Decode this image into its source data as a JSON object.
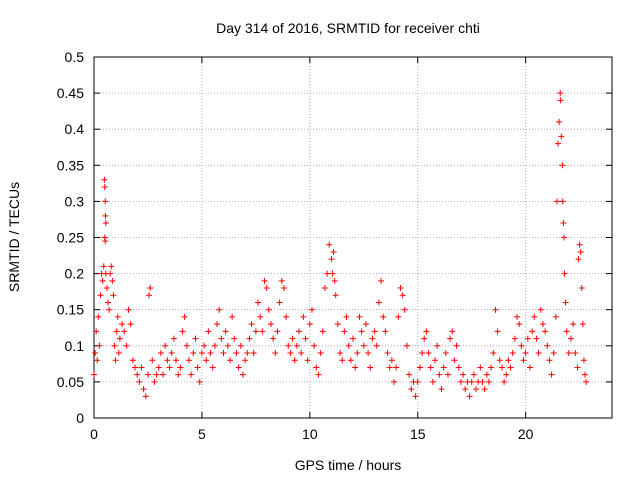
{
  "chart_data": {
    "type": "scatter",
    "title": "Day 314 of 2016, SRMTID for receiver chti",
    "xlabel": "GPS time / hours",
    "ylabel": "SRMTID / TECUs",
    "xlim": [
      0,
      24
    ],
    "ylim": [
      0,
      0.5
    ],
    "x_ticks": [
      0,
      5,
      10,
      15,
      20
    ],
    "x_tick_labels": [
      "0",
      "5",
      "10",
      "15",
      "20"
    ],
    "y_ticks": [
      0,
      0.05,
      0.1,
      0.15,
      0.2,
      0.25,
      0.3,
      0.35,
      0.4,
      0.45,
      0.5
    ],
    "y_tick_labels": [
      "0",
      "0.05",
      "0.1",
      "0.15",
      "0.2",
      "0.25",
      "0.3",
      "0.35",
      "0.4",
      "0.45",
      "0.5"
    ],
    "grid": true,
    "marker": "+",
    "series": [
      {
        "name": "SRMTID",
        "color": "#ff0000",
        "points": [
          [
            0.0,
            0.06
          ],
          [
            0.05,
            0.09
          ],
          [
            0.1,
            0.12
          ],
          [
            0.15,
            0.08
          ],
          [
            0.2,
            0.14
          ],
          [
            0.25,
            0.1
          ],
          [
            0.3,
            0.17
          ],
          [
            0.35,
            0.2
          ],
          [
            0.4,
            0.19
          ],
          [
            0.45,
            0.21
          ],
          [
            0.48,
            0.33
          ],
          [
            0.5,
            0.32
          ],
          [
            0.52,
            0.3
          ],
          [
            0.53,
            0.28
          ],
          [
            0.55,
            0.27
          ],
          [
            0.5,
            0.25
          ],
          [
            0.52,
            0.245
          ],
          [
            0.55,
            0.2
          ],
          [
            0.6,
            0.18
          ],
          [
            0.65,
            0.16
          ],
          [
            0.7,
            0.15
          ],
          [
            0.75,
            0.2
          ],
          [
            0.8,
            0.21
          ],
          [
            0.85,
            0.19
          ],
          [
            0.9,
            0.17
          ],
          [
            0.95,
            0.1
          ],
          [
            1.0,
            0.08
          ],
          [
            1.05,
            0.12
          ],
          [
            1.1,
            0.14
          ],
          [
            1.15,
            0.09
          ],
          [
            1.2,
            0.11
          ],
          [
            1.3,
            0.13
          ],
          [
            1.4,
            0.12
          ],
          [
            1.5,
            0.1
          ],
          [
            1.6,
            0.15
          ],
          [
            1.7,
            0.13
          ],
          [
            1.8,
            0.08
          ],
          [
            1.9,
            0.07
          ],
          [
            2.0,
            0.06
          ],
          [
            2.1,
            0.05
          ],
          [
            2.2,
            0.07
          ],
          [
            2.3,
            0.04
          ],
          [
            2.4,
            0.03
          ],
          [
            2.5,
            0.06
          ],
          [
            2.55,
            0.17
          ],
          [
            2.6,
            0.18
          ],
          [
            2.7,
            0.08
          ],
          [
            2.8,
            0.05
          ],
          [
            2.9,
            0.06
          ],
          [
            3.0,
            0.07
          ],
          [
            3.1,
            0.09
          ],
          [
            3.2,
            0.06
          ],
          [
            3.3,
            0.1
          ],
          [
            3.4,
            0.08
          ],
          [
            3.5,
            0.07
          ],
          [
            3.6,
            0.09
          ],
          [
            3.7,
            0.11
          ],
          [
            3.8,
            0.08
          ],
          [
            3.9,
            0.06
          ],
          [
            4.0,
            0.07
          ],
          [
            4.1,
            0.12
          ],
          [
            4.2,
            0.14
          ],
          [
            4.3,
            0.1
          ],
          [
            4.4,
            0.08
          ],
          [
            4.5,
            0.06
          ],
          [
            4.6,
            0.09
          ],
          [
            4.7,
            0.11
          ],
          [
            4.8,
            0.07
          ],
          [
            4.9,
            0.05
          ],
          [
            5.0,
            0.09
          ],
          [
            5.1,
            0.1
          ],
          [
            5.2,
            0.08
          ],
          [
            5.3,
            0.12
          ],
          [
            5.4,
            0.09
          ],
          [
            5.5,
            0.07
          ],
          [
            5.6,
            0.1
          ],
          [
            5.7,
            0.13
          ],
          [
            5.8,
            0.15
          ],
          [
            5.9,
            0.11
          ],
          [
            6.0,
            0.09
          ],
          [
            6.1,
            0.12
          ],
          [
            6.2,
            0.1
          ],
          [
            6.3,
            0.08
          ],
          [
            6.4,
            0.14
          ],
          [
            6.5,
            0.11
          ],
          [
            6.6,
            0.09
          ],
          [
            6.7,
            0.07
          ],
          [
            6.8,
            0.1
          ],
          [
            6.9,
            0.06
          ],
          [
            7.0,
            0.08
          ],
          [
            7.1,
            0.09
          ],
          [
            7.2,
            0.11
          ],
          [
            7.3,
            0.13
          ],
          [
            7.4,
            0.09
          ],
          [
            7.5,
            0.12
          ],
          [
            7.6,
            0.16
          ],
          [
            7.7,
            0.14
          ],
          [
            7.8,
            0.12
          ],
          [
            7.9,
            0.19
          ],
          [
            8.0,
            0.18
          ],
          [
            8.1,
            0.15
          ],
          [
            8.2,
            0.13
          ],
          [
            8.3,
            0.11
          ],
          [
            8.4,
            0.09
          ],
          [
            8.5,
            0.12
          ],
          [
            8.6,
            0.16
          ],
          [
            8.7,
            0.19
          ],
          [
            8.8,
            0.18
          ],
          [
            8.9,
            0.14
          ],
          [
            9.0,
            0.1
          ],
          [
            9.1,
            0.09
          ],
          [
            9.2,
            0.11
          ],
          [
            9.3,
            0.08
          ],
          [
            9.4,
            0.1
          ],
          [
            9.5,
            0.12
          ],
          [
            9.6,
            0.09
          ],
          [
            9.7,
            0.14
          ],
          [
            9.8,
            0.11
          ],
          [
            9.9,
            0.08
          ],
          [
            10.0,
            0.13
          ],
          [
            10.1,
            0.15
          ],
          [
            10.2,
            0.1
          ],
          [
            10.3,
            0.07
          ],
          [
            10.4,
            0.06
          ],
          [
            10.5,
            0.09
          ],
          [
            10.6,
            0.12
          ],
          [
            10.7,
            0.18
          ],
          [
            10.8,
            0.2
          ],
          [
            10.9,
            0.24
          ],
          [
            11.0,
            0.22
          ],
          [
            11.05,
            0.2
          ],
          [
            11.1,
            0.23
          ],
          [
            11.15,
            0.19
          ],
          [
            11.2,
            0.17
          ],
          [
            11.3,
            0.13
          ],
          [
            11.4,
            0.09
          ],
          [
            11.5,
            0.08
          ],
          [
            11.6,
            0.12
          ],
          [
            11.7,
            0.14
          ],
          [
            11.8,
            0.1
          ],
          [
            11.9,
            0.08
          ],
          [
            12.0,
            0.11
          ],
          [
            12.1,
            0.07
          ],
          [
            12.2,
            0.09
          ],
          [
            12.3,
            0.14
          ],
          [
            12.4,
            0.12
          ],
          [
            12.5,
            0.1
          ],
          [
            12.6,
            0.13
          ],
          [
            12.7,
            0.09
          ],
          [
            12.8,
            0.07
          ],
          [
            12.9,
            0.11
          ],
          [
            13.0,
            0.12
          ],
          [
            13.1,
            0.1
          ],
          [
            13.2,
            0.16
          ],
          [
            13.3,
            0.19
          ],
          [
            13.4,
            0.14
          ],
          [
            13.5,
            0.12
          ],
          [
            13.6,
            0.09
          ],
          [
            13.7,
            0.07
          ],
          [
            13.8,
            0.08
          ],
          [
            13.9,
            0.05
          ],
          [
            14.0,
            0.07
          ],
          [
            14.1,
            0.14
          ],
          [
            14.2,
            0.18
          ],
          [
            14.3,
            0.17
          ],
          [
            14.4,
            0.15
          ],
          [
            14.5,
            0.1
          ],
          [
            14.6,
            0.06
          ],
          [
            14.7,
            0.04
          ],
          [
            14.8,
            0.05
          ],
          [
            14.9,
            0.03
          ],
          [
            15.0,
            0.05
          ],
          [
            15.1,
            0.07
          ],
          [
            15.2,
            0.09
          ],
          [
            15.3,
            0.11
          ],
          [
            15.4,
            0.12
          ],
          [
            15.5,
            0.09
          ],
          [
            15.6,
            0.07
          ],
          [
            15.7,
            0.05
          ],
          [
            15.8,
            0.08
          ],
          [
            15.9,
            0.1
          ],
          [
            16.0,
            0.06
          ],
          [
            16.1,
            0.04
          ],
          [
            16.2,
            0.07
          ],
          [
            16.3,
            0.09
          ],
          [
            16.4,
            0.06
          ],
          [
            16.5,
            0.11
          ],
          [
            16.6,
            0.12
          ],
          [
            16.7,
            0.08
          ],
          [
            16.8,
            0.1
          ],
          [
            16.9,
            0.07
          ],
          [
            17.0,
            0.05
          ],
          [
            17.1,
            0.06
          ],
          [
            17.2,
            0.04
          ],
          [
            17.3,
            0.05
          ],
          [
            17.4,
            0.03
          ],
          [
            17.5,
            0.05
          ],
          [
            17.6,
            0.06
          ],
          [
            17.7,
            0.04
          ],
          [
            17.8,
            0.05
          ],
          [
            17.9,
            0.07
          ],
          [
            18.0,
            0.05
          ],
          [
            18.1,
            0.04
          ],
          [
            18.2,
            0.06
          ],
          [
            18.3,
            0.05
          ],
          [
            18.4,
            0.07
          ],
          [
            18.5,
            0.09
          ],
          [
            18.6,
            0.15
          ],
          [
            18.7,
            0.12
          ],
          [
            18.8,
            0.08
          ],
          [
            18.9,
            0.07
          ],
          [
            19.0,
            0.05
          ],
          [
            19.1,
            0.06
          ],
          [
            19.2,
            0.08
          ],
          [
            19.3,
            0.07
          ],
          [
            19.4,
            0.09
          ],
          [
            19.5,
            0.11
          ],
          [
            19.6,
            0.14
          ],
          [
            19.7,
            0.13
          ],
          [
            19.8,
            0.1
          ],
          [
            19.9,
            0.08
          ],
          [
            20.0,
            0.09
          ],
          [
            20.1,
            0.11
          ],
          [
            20.2,
            0.07
          ],
          [
            20.3,
            0.12
          ],
          [
            20.4,
            0.14
          ],
          [
            20.5,
            0.11
          ],
          [
            20.6,
            0.09
          ],
          [
            20.7,
            0.15
          ],
          [
            20.8,
            0.13
          ],
          [
            20.9,
            0.12
          ],
          [
            21.0,
            0.1
          ],
          [
            21.1,
            0.08
          ],
          [
            21.2,
            0.06
          ],
          [
            21.3,
            0.09
          ],
          [
            21.4,
            0.14
          ],
          [
            21.45,
            0.3
          ],
          [
            21.5,
            0.38
          ],
          [
            21.55,
            0.41
          ],
          [
            21.6,
            0.45
          ],
          [
            21.62,
            0.44
          ],
          [
            21.65,
            0.39
          ],
          [
            21.7,
            0.35
          ],
          [
            21.72,
            0.3
          ],
          [
            21.75,
            0.27
          ],
          [
            21.78,
            0.25
          ],
          [
            21.8,
            0.2
          ],
          [
            21.85,
            0.16
          ],
          [
            21.9,
            0.12
          ],
          [
            22.0,
            0.09
          ],
          [
            22.1,
            0.11
          ],
          [
            22.2,
            0.13
          ],
          [
            22.3,
            0.09
          ],
          [
            22.4,
            0.07
          ],
          [
            22.45,
            0.22
          ],
          [
            22.5,
            0.24
          ],
          [
            22.55,
            0.23
          ],
          [
            22.6,
            0.18
          ],
          [
            22.65,
            0.13
          ],
          [
            22.7,
            0.08
          ],
          [
            22.75,
            0.06
          ],
          [
            22.8,
            0.05
          ]
        ]
      }
    ]
  }
}
